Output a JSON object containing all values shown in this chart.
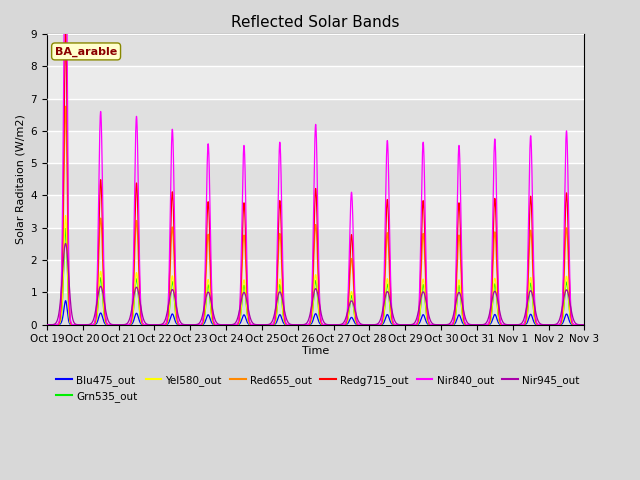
{
  "title": "Reflected Solar Bands",
  "xlabel": "Time",
  "ylabel": "Solar Raditaion (W/m2)",
  "ylim": [
    0,
    9.0
  ],
  "yticks": [
    0.0,
    1.0,
    2.0,
    3.0,
    4.0,
    5.0,
    6.0,
    7.0,
    8.0,
    9.0
  ],
  "figure_bg": "#d8d8d8",
  "plot_bg": "#e8e8e8",
  "annotation_text": "BA_arable",
  "annotation_color": "#8B0000",
  "annotation_bg": "#ffffcc",
  "n_days": 16,
  "series": [
    {
      "name": "Blu475_out",
      "color": "#0000ff",
      "peak_scale": 0.055
    },
    {
      "name": "Grn535_out",
      "color": "#00ee00",
      "peak_scale": 0.22
    },
    {
      "name": "Yel580_out",
      "color": "#ffff00",
      "peak_scale": 0.25
    },
    {
      "name": "Red655_out",
      "color": "#ff8800",
      "peak_scale": 0.5
    },
    {
      "name": "Redg715_out",
      "color": "#ff0000",
      "peak_scale": 0.68
    },
    {
      "name": "Nir840_out",
      "color": "#ff00ff",
      "peak_scale": 1.0
    },
    {
      "name": "Nir945_out",
      "color": "#aa00aa",
      "peak_scale": 0.18
    }
  ],
  "day_peaks_nir840": [
    6.1,
    6.6,
    6.45,
    6.05,
    5.6,
    5.55,
    5.65,
    6.2,
    4.1,
    5.7,
    5.65,
    5.55,
    5.75,
    5.85,
    6.0,
    6.0
  ],
  "nir840_second_peak": [
    8.05,
    0,
    0,
    0,
    0,
    0,
    0,
    0,
    0,
    0,
    0,
    0,
    0,
    0,
    0,
    0
  ],
  "xtick_labels": [
    "Oct 19",
    "Oct 20",
    "Oct 21",
    "Oct 22",
    "Oct 23",
    "Oct 24",
    "Oct 25",
    "Oct 26",
    "Oct 27",
    "Oct 28",
    "Oct 29",
    "Oct 30",
    "Oct 31",
    "Nov 1",
    "Nov 2",
    "Nov 3"
  ],
  "legend_order": [
    "Blu475_out",
    "Grn535_out",
    "Yel580_out",
    "Red655_out",
    "Redg715_out",
    "Nir840_out",
    "Nir945_out"
  ]
}
